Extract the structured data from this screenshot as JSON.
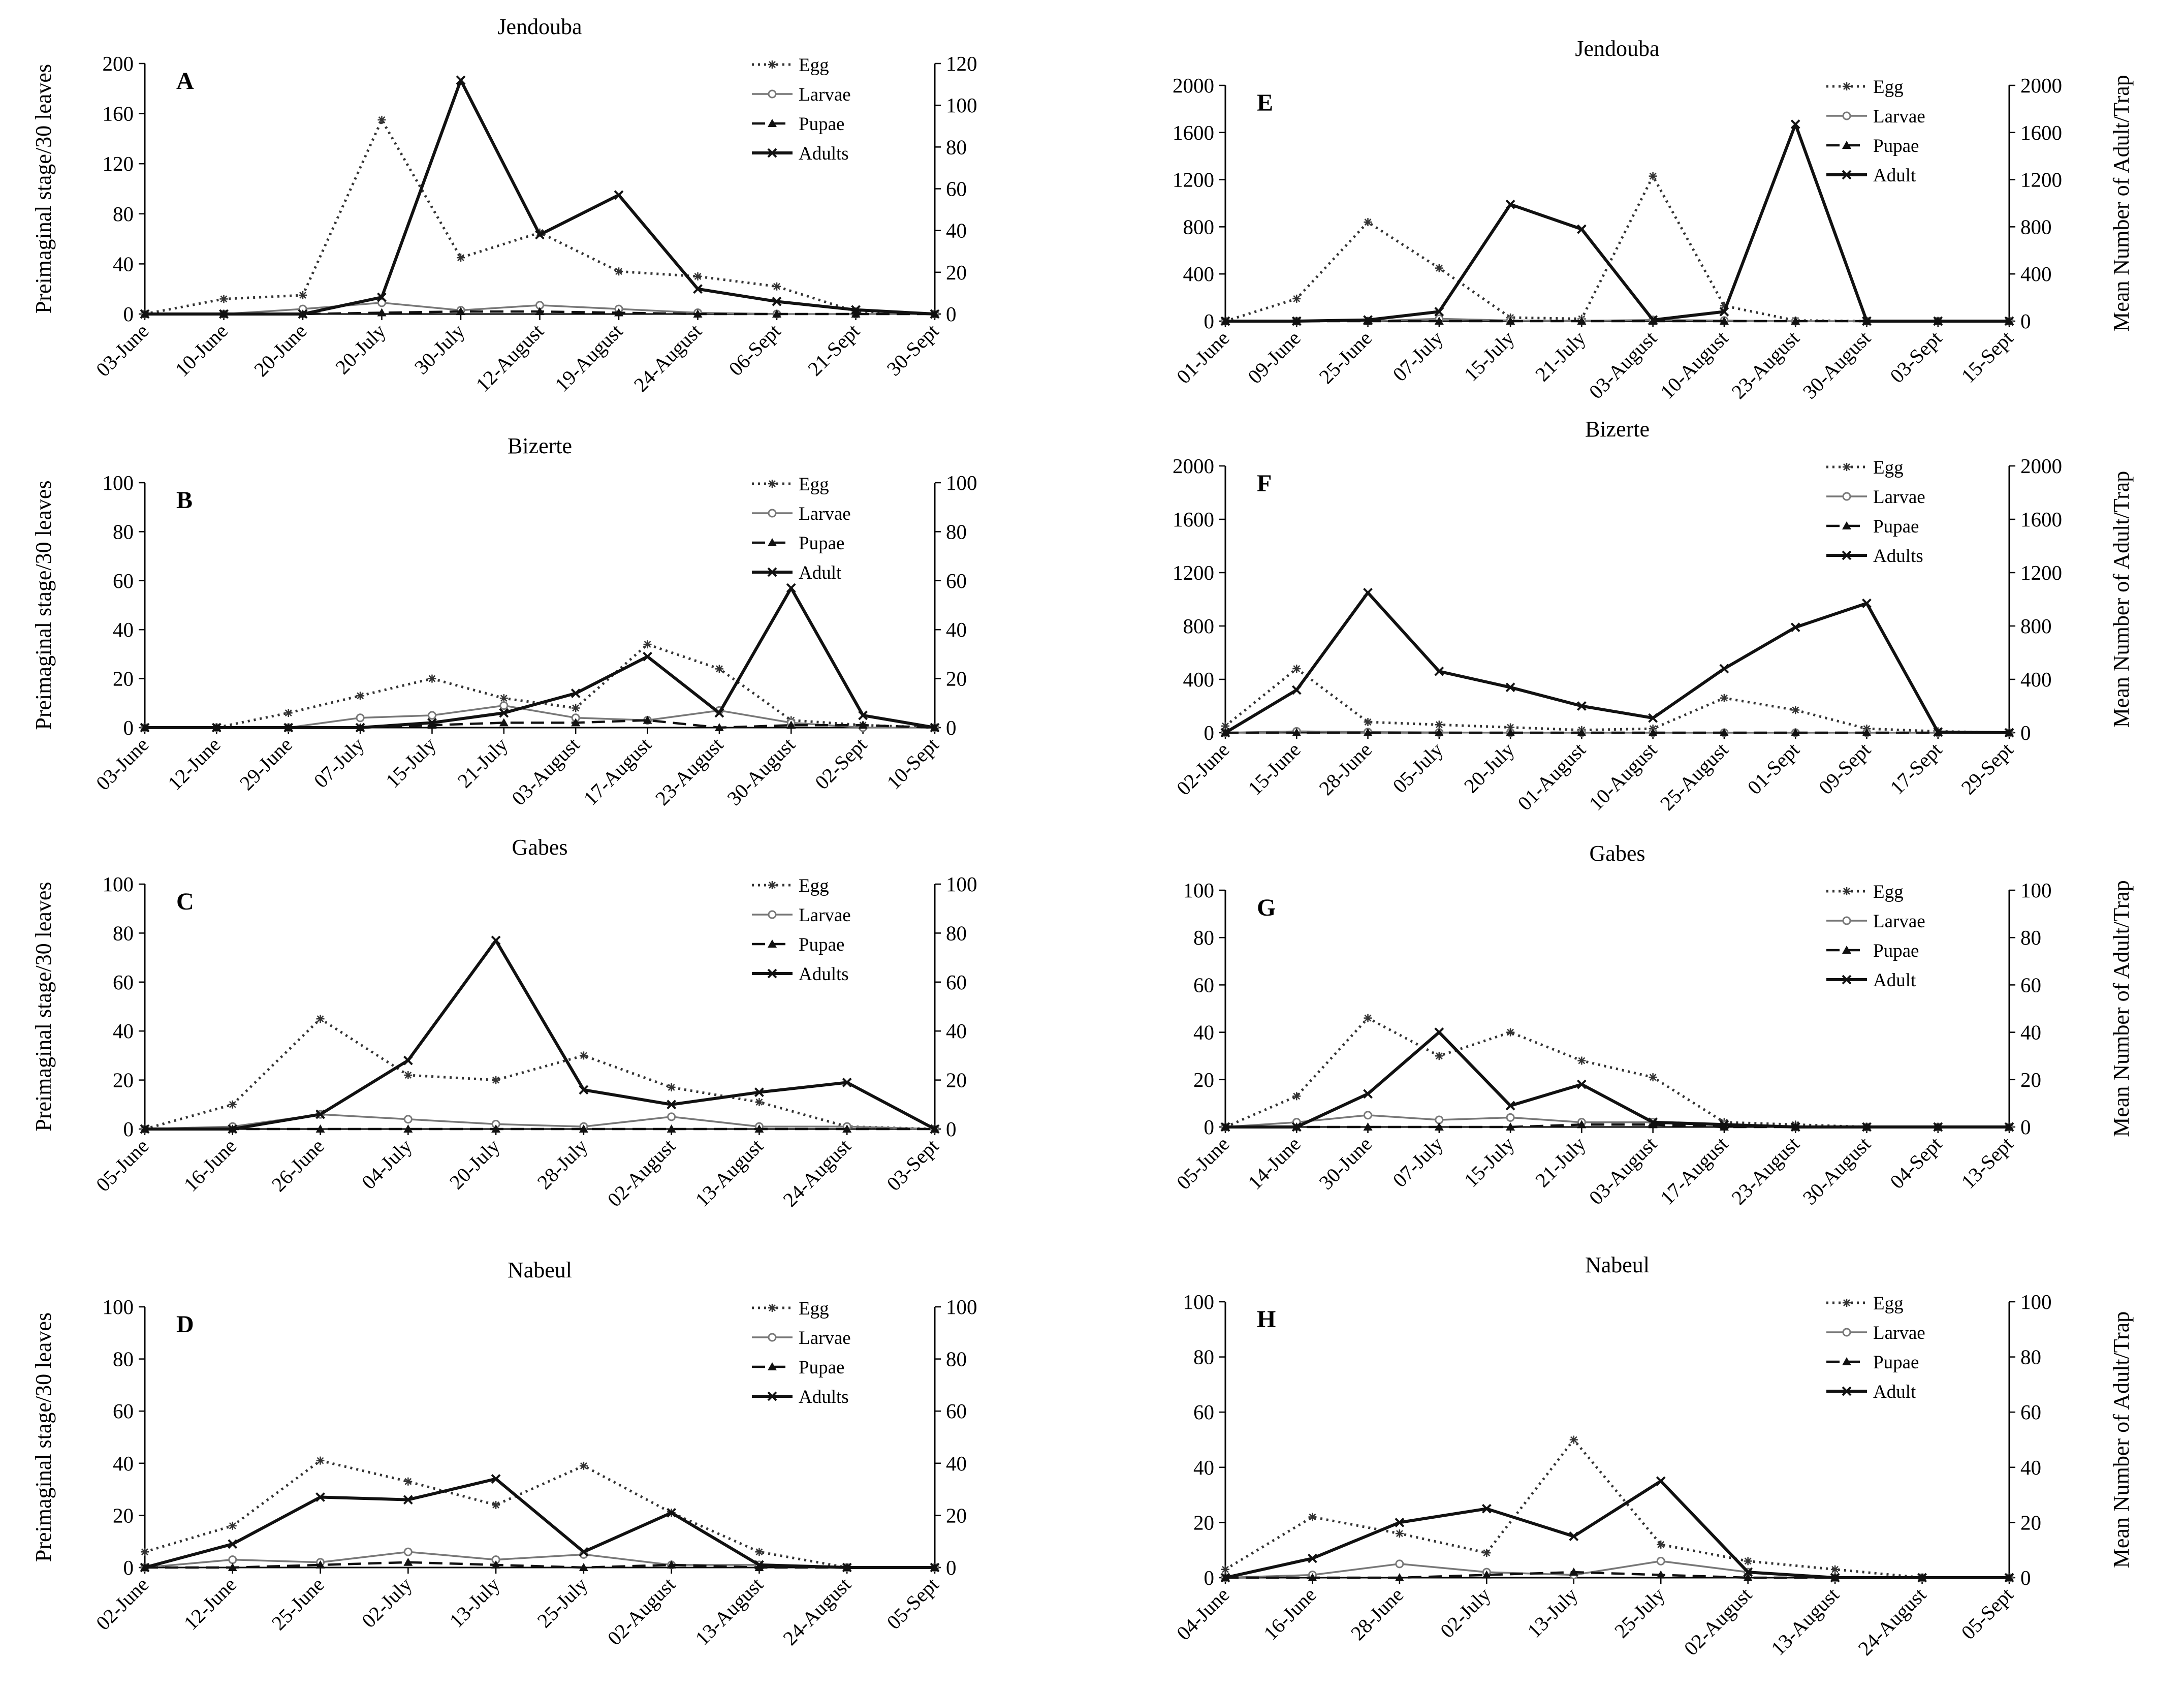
{
  "figure": {
    "left_axis_label": "Preimaginal stage/30 leaves",
    "right_axis_label": "Mean Number of Adult/Trap"
  },
  "colors": {
    "egg": "#333333",
    "larvae": "#777777",
    "pupae": "#111111",
    "adult": "#111111",
    "axis": "#000000"
  },
  "chart_data": [
    {
      "type": "line",
      "panel": "A",
      "title": "Jendouba",
      "ylabel_left": "Preimaginal stage/30 leaves",
      "ylabel_right": "",
      "ylim_left": [
        0,
        200
      ],
      "yticks_left": [
        0,
        40,
        80,
        120,
        160,
        200
      ],
      "ylim_right": [
        0,
        120
      ],
      "yticks_right": [
        0,
        20,
        40,
        60,
        80,
        100,
        120
      ],
      "x": [
        "03-June",
        "10-June",
        "20-June",
        "20-July",
        "30-July",
        "12-August",
        "19-August",
        "24-August",
        "06-Sept",
        "21-Sept",
        "30-Sept"
      ],
      "legend": [
        "Egg",
        "Larvae",
        "Pupae",
        "Adults"
      ],
      "series": [
        {
          "name": "Egg",
          "axis": "left",
          "values": [
            0,
            12,
            15,
            155,
            45,
            65,
            34,
            30,
            22,
            2,
            0
          ]
        },
        {
          "name": "Larvae",
          "axis": "left",
          "values": [
            0,
            0,
            4,
            9,
            3,
            7,
            4,
            1,
            0,
            0,
            0
          ]
        },
        {
          "name": "Pupae",
          "axis": "left",
          "values": [
            0,
            0,
            0,
            1,
            2,
            2,
            1,
            0,
            0,
            0,
            0
          ]
        },
        {
          "name": "Adults",
          "axis": "right",
          "values": [
            0,
            0,
            0,
            8,
            112,
            38,
            57,
            12,
            6,
            2,
            0
          ]
        }
      ]
    },
    {
      "type": "line",
      "panel": "B",
      "title": "Bizerte",
      "ylabel_left": "Preimaginal stage/30 leaves",
      "ylabel_right": "",
      "ylim_left": [
        0,
        100
      ],
      "yticks_left": [
        0,
        20,
        40,
        60,
        80,
        100
      ],
      "ylim_right": [
        0,
        100
      ],
      "yticks_right": [
        0,
        20,
        40,
        60,
        80,
        100
      ],
      "x": [
        "03-June",
        "12-June",
        "29-June",
        "07-July",
        "15-July",
        "21-July",
        "03-August",
        "17-August",
        "23-August",
        "30-August",
        "02-Sept",
        "10-Sept"
      ],
      "legend": [
        "Egg",
        "Larvae",
        "Pupae",
        "Adult"
      ],
      "series": [
        {
          "name": "Egg",
          "axis": "left",
          "values": [
            0,
            0,
            6,
            13,
            20,
            12,
            8,
            34,
            24,
            3,
            1,
            0
          ]
        },
        {
          "name": "Larvae",
          "axis": "left",
          "values": [
            0,
            0,
            0,
            4,
            5,
            9,
            4,
            3,
            7,
            2,
            0,
            0
          ]
        },
        {
          "name": "Pupae",
          "axis": "left",
          "values": [
            0,
            0,
            0,
            0,
            1,
            2,
            2,
            3,
            0,
            1,
            1,
            0
          ]
        },
        {
          "name": "Adult",
          "axis": "right",
          "values": [
            0,
            0,
            0,
            0,
            2,
            6,
            14,
            29,
            6,
            57,
            5,
            0
          ]
        }
      ]
    },
    {
      "type": "line",
      "panel": "C",
      "title": "Gabes",
      "ylabel_left": "Preimaginal stage/30 leaves",
      "ylabel_right": "",
      "ylim_left": [
        0,
        100
      ],
      "yticks_left": [
        0,
        20,
        40,
        60,
        80,
        100
      ],
      "ylim_right": [
        0,
        100
      ],
      "yticks_right": [
        0,
        20,
        40,
        60,
        80,
        100
      ],
      "x": [
        "05-June",
        "16-June",
        "26-June",
        "04-July",
        "20-July",
        "28-July",
        "02-August",
        "13-August",
        "24-August",
        "03-Sept"
      ],
      "legend": [
        "Egg",
        "Larvae",
        "Pupae",
        "Adults"
      ],
      "series": [
        {
          "name": "Egg",
          "axis": "left",
          "values": [
            0,
            10,
            45,
            22,
            20,
            30,
            17,
            11,
            1,
            0
          ]
        },
        {
          "name": "Larvae",
          "axis": "left",
          "values": [
            0,
            1,
            6,
            4,
            2,
            1,
            5,
            1,
            1,
            0
          ]
        },
        {
          "name": "Pupae",
          "axis": "left",
          "values": [
            0,
            0,
            0,
            0,
            0,
            0,
            0,
            0,
            0,
            0
          ]
        },
        {
          "name": "Adults",
          "axis": "right",
          "values": [
            0,
            0,
            6,
            28,
            77,
            16,
            10,
            15,
            19,
            0
          ]
        }
      ]
    },
    {
      "type": "line",
      "panel": "D",
      "title": "Nabeul",
      "ylabel_left": "Preimaginal stage/30 leaves",
      "ylabel_right": "",
      "ylim_left": [
        0,
        100
      ],
      "yticks_left": [
        0,
        20,
        40,
        60,
        80,
        100
      ],
      "ylim_right": [
        0,
        100
      ],
      "yticks_right": [
        0,
        20,
        40,
        60,
        80,
        100
      ],
      "x": [
        "02-June",
        "12-June",
        "25-June",
        "02-July",
        "13-July",
        "25-July",
        "02-August",
        "13-August",
        "24-August",
        "05-Sept"
      ],
      "legend": [
        "Egg",
        "Larvae",
        "Pupae",
        "Adults"
      ],
      "series": [
        {
          "name": "Egg",
          "axis": "left",
          "values": [
            6,
            16,
            41,
            33,
            24,
            39,
            21,
            6,
            0,
            0
          ]
        },
        {
          "name": "Larvae",
          "axis": "left",
          "values": [
            0,
            3,
            2,
            6,
            3,
            5,
            1,
            1,
            0,
            0
          ]
        },
        {
          "name": "Pupae",
          "axis": "left",
          "values": [
            0,
            0,
            1,
            2,
            1,
            0,
            1,
            0,
            0,
            0
          ]
        },
        {
          "name": "Adults",
          "axis": "right",
          "values": [
            0,
            9,
            27,
            26,
            34,
            6,
            21,
            1,
            0,
            0
          ]
        }
      ]
    },
    {
      "type": "line",
      "panel": "E",
      "title": "Jendouba",
      "ylabel_left": "",
      "ylabel_right": "Mean Number of Adult/Trap",
      "ylim_left": [
        0,
        2000
      ],
      "yticks_left": [
        0,
        400,
        800,
        1200,
        1600,
        2000
      ],
      "ylim_right": [
        0,
        2000
      ],
      "yticks_right": [
        0,
        400,
        800,
        1200,
        1600,
        2000
      ],
      "x": [
        "01-June",
        "09-June",
        "25-June",
        "07-July",
        "15-July",
        "21-July",
        "03-August",
        "10-August",
        "23-August",
        "30-August",
        "03-Sept",
        "15-Sept"
      ],
      "legend": [
        "Egg",
        "Larvae",
        "Pupae",
        "Adult"
      ],
      "series": [
        {
          "name": "Egg",
          "axis": "left",
          "values": [
            0,
            190,
            840,
            450,
            30,
            20,
            1230,
            130,
            5,
            0,
            0,
            0
          ]
        },
        {
          "name": "Larvae",
          "axis": "left",
          "values": [
            0,
            0,
            0,
            20,
            5,
            3,
            10,
            5,
            0,
            0,
            0,
            0
          ]
        },
        {
          "name": "Pupae",
          "axis": "left",
          "values": [
            0,
            0,
            0,
            0,
            0,
            0,
            0,
            0,
            0,
            0,
            0,
            0
          ]
        },
        {
          "name": "Adult",
          "axis": "right",
          "values": [
            0,
            0,
            10,
            80,
            990,
            780,
            10,
            80,
            1670,
            0,
            0,
            0
          ]
        }
      ]
    },
    {
      "type": "line",
      "panel": "F",
      "title": "Bizerte",
      "ylabel_left": "",
      "ylabel_right": "Mean Number of Adult/Trap",
      "ylim_left": [
        0,
        2000
      ],
      "yticks_left": [
        0,
        400,
        800,
        1200,
        1600,
        2000
      ],
      "ylim_right": [
        0,
        2000
      ],
      "yticks_right": [
        0,
        400,
        800,
        1200,
        1600,
        2000
      ],
      "x": [
        "02-June",
        "15-June",
        "28-June",
        "05-July",
        "20-July",
        "01-August",
        "10-August",
        "25-August",
        "01-Sept",
        "09-Sept",
        "17-Sept",
        "29-Sept"
      ],
      "legend": [
        "Egg",
        "Larvae",
        "Pupae",
        "Adults"
      ],
      "series": [
        {
          "name": "Egg",
          "axis": "left",
          "values": [
            50,
            480,
            80,
            60,
            40,
            20,
            30,
            260,
            170,
            30,
            10,
            0
          ]
        },
        {
          "name": "Larvae",
          "axis": "left",
          "values": [
            0,
            10,
            5,
            2,
            0,
            0,
            0,
            0,
            0,
            0,
            0,
            0
          ]
        },
        {
          "name": "Pupae",
          "axis": "left",
          "values": [
            0,
            0,
            0,
            0,
            0,
            0,
            0,
            0,
            0,
            0,
            0,
            0
          ]
        },
        {
          "name": "Adults",
          "axis": "right",
          "values": [
            0,
            320,
            1050,
            460,
            340,
            200,
            110,
            480,
            790,
            970,
            5,
            0
          ]
        }
      ]
    },
    {
      "type": "line",
      "panel": "G",
      "title": "Gabes",
      "ylabel_left": "",
      "ylabel_right": "Mean Number of Adult/Trap",
      "ylim_left": [
        0,
        100
      ],
      "yticks_left": [
        0,
        20,
        40,
        60,
        80,
        100
      ],
      "ylim_right": [
        0,
        100
      ],
      "yticks_right": [
        0,
        20,
        40,
        60,
        80,
        100
      ],
      "x": [
        "05-June",
        "14-June",
        "30-June",
        "07-July",
        "15-July",
        "21-July",
        "03-August",
        "17-August",
        "23-August",
        "30-August",
        "04-Sept",
        "13-Sept"
      ],
      "legend": [
        "Egg",
        "Larvae",
        "Pupae",
        "Adult"
      ],
      "series": [
        {
          "name": "Egg",
          "axis": "left",
          "values": [
            0,
            13,
            46,
            30,
            40,
            28,
            21,
            2,
            1,
            0,
            0,
            0
          ]
        },
        {
          "name": "Larvae",
          "axis": "left",
          "values": [
            0,
            2,
            5,
            3,
            4,
            2,
            2,
            1,
            0,
            0,
            0,
            0
          ]
        },
        {
          "name": "Pupae",
          "axis": "left",
          "values": [
            0,
            0,
            0,
            0,
            0,
            1,
            1,
            0,
            0,
            0,
            0,
            0
          ]
        },
        {
          "name": "Adult",
          "axis": "right",
          "values": [
            0,
            0,
            14,
            40,
            9,
            18,
            2,
            1,
            0,
            0,
            0,
            0
          ]
        }
      ]
    },
    {
      "type": "line",
      "panel": "H",
      "title": "Nabeul",
      "ylabel_left": "",
      "ylabel_right": "Mean Number of Adult/Trap",
      "ylim_left": [
        0,
        100
      ],
      "yticks_left": [
        0,
        20,
        40,
        60,
        80,
        100
      ],
      "ylim_right": [
        0,
        100
      ],
      "yticks_right": [
        0,
        20,
        40,
        60,
        80,
        100
      ],
      "x": [
        "04-June",
        "16-June",
        "28-June",
        "02-July",
        "13-July",
        "25-July",
        "02-August",
        "13-August",
        "24-August",
        "05-Sept"
      ],
      "legend": [
        "Egg",
        "Larvae",
        "Pupae",
        "Adult"
      ],
      "series": [
        {
          "name": "Egg",
          "axis": "left",
          "values": [
            3,
            22,
            16,
            9,
            50,
            12,
            6,
            3,
            0,
            0
          ]
        },
        {
          "name": "Larvae",
          "axis": "left",
          "values": [
            0,
            1,
            5,
            2,
            1,
            6,
            2,
            0,
            0,
            0
          ]
        },
        {
          "name": "Pupae",
          "axis": "left",
          "values": [
            0,
            0,
            0,
            1,
            2,
            1,
            0,
            0,
            0,
            0
          ]
        },
        {
          "name": "Adult",
          "axis": "right",
          "values": [
            0,
            7,
            20,
            25,
            15,
            35,
            2,
            0,
            0,
            0
          ]
        }
      ]
    }
  ]
}
